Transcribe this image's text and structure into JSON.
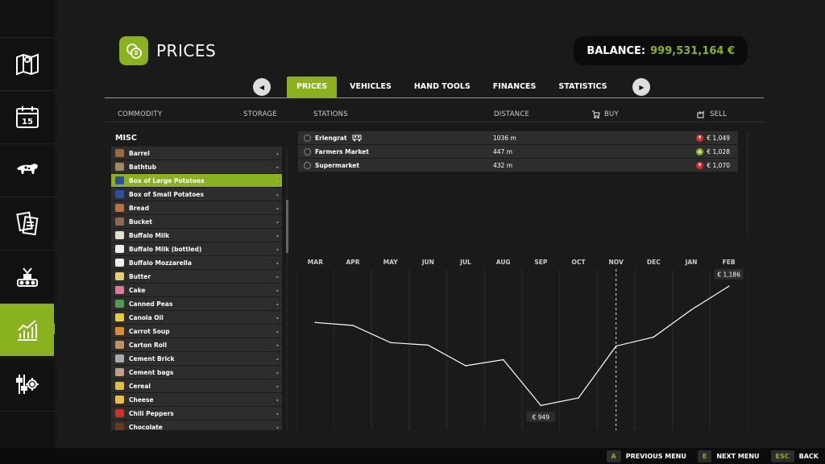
{
  "page": {
    "title": "PRICES"
  },
  "balance": {
    "label": "BALANCE:",
    "value": "999,531,164 €"
  },
  "tabs": [
    {
      "label": "PRICES",
      "active": true
    },
    {
      "label": "VEHICLES",
      "active": false
    },
    {
      "label": "HAND TOOLS",
      "active": false
    },
    {
      "label": "FINANCES",
      "active": false
    },
    {
      "label": "STATISTICS",
      "active": false
    }
  ],
  "columns": {
    "commodity": "COMMODITY",
    "storage": "STORAGE",
    "stations": "STATIONS",
    "distance": "DISTANCE",
    "buy": "BUY",
    "sell": "SELL"
  },
  "sidebar": {
    "items": [
      {
        "icon": "map-icon"
      },
      {
        "icon": "calendar-icon",
        "day": "15"
      },
      {
        "icon": "animals-icon"
      },
      {
        "icon": "contracts-icon"
      },
      {
        "icon": "production-icon"
      },
      {
        "icon": "prices-chart-icon",
        "active": true
      },
      {
        "icon": "settings-icon"
      }
    ]
  },
  "commodities": {
    "group": "MISC",
    "items": [
      {
        "name": "Barrel",
        "storage": "-",
        "color": "#9a6a3a"
      },
      {
        "name": "Bathtub",
        "storage": "-",
        "color": "#a58a5a"
      },
      {
        "name": "Box of Large Potatoes",
        "storage": "-",
        "color": "#2a4fa8",
        "selected": true
      },
      {
        "name": "Box of Small Potatoes",
        "storage": "-",
        "color": "#2a4fa8"
      },
      {
        "name": "Bread",
        "storage": "-",
        "color": "#b8743a"
      },
      {
        "name": "Bucket",
        "storage": "-",
        "color": "#8a6a4a"
      },
      {
        "name": "Buffalo Milk",
        "storage": "-",
        "color": "#e8e0c8"
      },
      {
        "name": "Buffalo Milk (bottled)",
        "storage": "-",
        "color": "#f0f0f0"
      },
      {
        "name": "Buffalo Mozzarella",
        "storage": "-",
        "color": "#f0efe8"
      },
      {
        "name": "Butter",
        "storage": "-",
        "color": "#e8d070"
      },
      {
        "name": "Cake",
        "storage": "-",
        "color": "#e07a9a"
      },
      {
        "name": "Canned Peas",
        "storage": "-",
        "color": "#4aa04a"
      },
      {
        "name": "Canola Oil",
        "storage": "-",
        "color": "#e8d030"
      },
      {
        "name": "Carrot Soup",
        "storage": "-",
        "color": "#e08a2a"
      },
      {
        "name": "Carton Roll",
        "storage": "-",
        "color": "#c09060"
      },
      {
        "name": "Cement Brick",
        "storage": "-",
        "color": "#aaaaaa"
      },
      {
        "name": "Cement bags",
        "storage": "-",
        "color": "#c0a080"
      },
      {
        "name": "Cereal",
        "storage": "-",
        "color": "#e0c040"
      },
      {
        "name": "Cheese",
        "storage": "-",
        "color": "#f0c030"
      },
      {
        "name": "Chili Peppers",
        "storage": "-",
        "color": "#d03020"
      },
      {
        "name": "Chocolate",
        "storage": "-",
        "color": "#6a3a1a"
      }
    ]
  },
  "stations": [
    {
      "name": "Erlengrat",
      "distance": "1036 m",
      "trend": "down",
      "sell": "€ 1,049",
      "rail": true
    },
    {
      "name": "Farmers Market",
      "distance": "447 m",
      "trend": "up",
      "sell": "€ 1,028",
      "rail": false
    },
    {
      "name": "Supermarket",
      "distance": "432 m",
      "trend": "down",
      "sell": "€ 1,070",
      "rail": false
    }
  ],
  "colors": {
    "accent": "#8ab21e",
    "trend_up": "#8ab21e",
    "trend_down": "#e02a2a"
  },
  "chart_data": {
    "type": "line",
    "categories": [
      "MAR",
      "APR",
      "MAY",
      "JUN",
      "JUL",
      "AUG",
      "SEP",
      "OCT",
      "NOV",
      "DEC",
      "JAN",
      "FEB"
    ],
    "series": [
      {
        "values": [
          1114,
          1108,
          1074,
          1069,
          1028,
          1040,
          949,
          964,
          1067,
          1085,
          1139,
          1186
        ]
      }
    ],
    "current_month": "NOV",
    "annotations": [
      {
        "month": "FEB",
        "label": "€ 1,186"
      },
      {
        "month": "SEP",
        "label": "€ 949"
      }
    ],
    "ylim": [
      900,
      1220
    ],
    "grid": true
  },
  "footer": {
    "buttons": [
      {
        "key": "A",
        "label": "PREVIOUS MENU"
      },
      {
        "key": "E",
        "label": "NEXT MENU"
      },
      {
        "key": "ESC",
        "label": "BACK"
      }
    ]
  }
}
